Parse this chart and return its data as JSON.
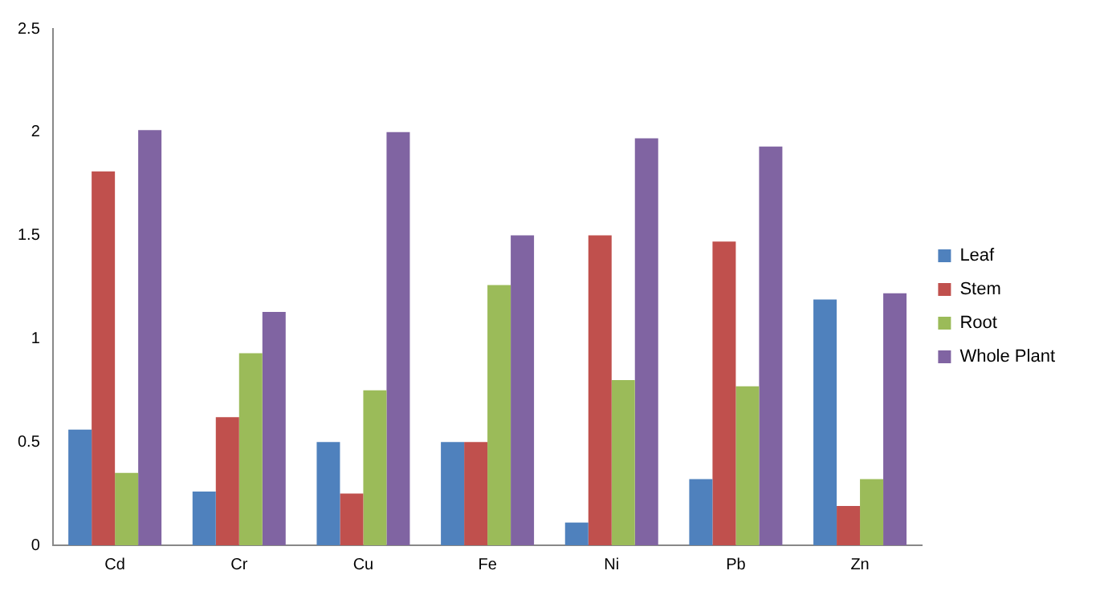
{
  "chart_data": {
    "type": "bar",
    "categories": [
      "Cd",
      "Cr",
      "Cu",
      "Fe",
      "Ni",
      "Pb",
      "Zn"
    ],
    "series": [
      {
        "name": "Leaf",
        "color": "#4f81bd",
        "values": [
          0.56,
          0.26,
          0.5,
          0.5,
          0.11,
          0.32,
          1.19
        ]
      },
      {
        "name": "Stem",
        "color": "#c0504d",
        "values": [
          1.81,
          0.62,
          0.25,
          0.5,
          1.5,
          1.47,
          0.19
        ]
      },
      {
        "name": "Root",
        "color": "#9bbb59",
        "values": [
          0.35,
          0.93,
          0.75,
          1.26,
          0.8,
          0.77,
          0.32
        ]
      },
      {
        "name": "Whole Plant",
        "color": "#8064a2",
        "values": [
          2.01,
          1.13,
          2.0,
          1.5,
          1.97,
          1.93,
          1.22
        ]
      }
    ],
    "ylim": [
      0,
      2.5
    ],
    "yticks": [
      0,
      0.5,
      1,
      1.5,
      2,
      2.5
    ],
    "grid": false,
    "legend": "right"
  }
}
